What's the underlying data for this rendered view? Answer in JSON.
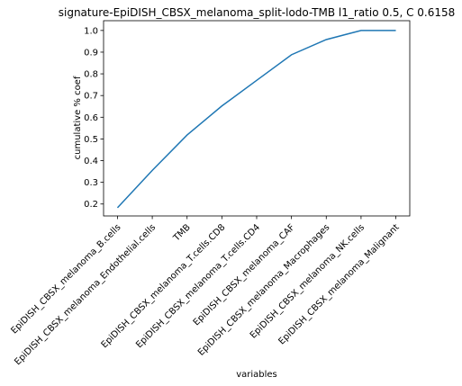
{
  "chart_data": {
    "type": "line",
    "title": "signature-EpiDISH_CBSX_melanoma_split-lodo-TMB l1_ratio 0.5, C 0.6158",
    "xlabel": "variables",
    "ylabel": "cumulative % coef",
    "categories": [
      "EpiDISH_CBSX_melanoma_B.cells",
      "EpiDISH_CBSX_melanoma_Endothelial.cells",
      "TMB",
      "EpiDISH_CBSX_melanoma_T.cells.CD8",
      "EpiDISH_CBSX_melanoma_T.cells.CD4",
      "EpiDISH_CBSX_melanoma_CAF",
      "EpiDISH_CBSX_melanoma_Macrophages",
      "EpiDISH_CBSX_melanoma_NK.cells",
      "EpiDISH_CBSX_melanoma_Malignant"
    ],
    "values": [
      0.183,
      0.355,
      0.518,
      0.652,
      0.77,
      0.888,
      0.958,
      1.0,
      1.0
    ],
    "ylim": [
      0.145,
      1.045
    ],
    "yticks": [
      0.2,
      0.3,
      0.4,
      0.5,
      0.6,
      0.7,
      0.8,
      0.9,
      1.0
    ],
    "ytick_labels": [
      "0.2",
      "0.3",
      "0.4",
      "0.5",
      "0.6",
      "0.7",
      "0.8",
      "0.9",
      "1.0"
    ],
    "grid": false,
    "line_color": "#1f77b4"
  }
}
